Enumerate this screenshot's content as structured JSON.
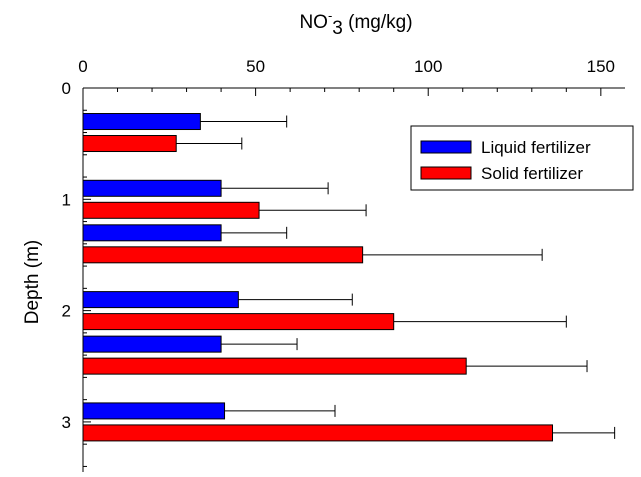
{
  "chart_data": {
    "type": "bar",
    "orientation": "horizontal",
    "title": "",
    "xlabel": {
      "prefix": "NO",
      "superscript": "-",
      "subscript": "3",
      "suffix": " (mg/kg)"
    },
    "ylabel": "Depth (m)",
    "xlim": [
      0,
      157
    ],
    "ylim": [
      0,
      3.45
    ],
    "x_axis_position": "top",
    "y_axis_inverted": true,
    "x_ticks": [
      "0",
      "50",
      "100",
      "150"
    ],
    "x_tick_values": [
      0,
      50,
      100,
      150
    ],
    "x_minor_step": 10,
    "y_ticks": [
      "0",
      "1",
      "2",
      "3"
    ],
    "y_tick_values": [
      0,
      1,
      2,
      3
    ],
    "y_minor_step": 0.2,
    "grid": false,
    "legend_position": "top-right",
    "categories": [
      0.4,
      1.0,
      1.4,
      2.0,
      2.4,
      3.0
    ],
    "series": [
      {
        "name": "Liquid fertilizer",
        "color": "#0000ff",
        "values": [
          34,
          40,
          40,
          45,
          40,
          41
        ],
        "errors": [
          25,
          31,
          19,
          33,
          22,
          32
        ]
      },
      {
        "name": "Solid fertilizer",
        "color": "#ff0000",
        "values": [
          27,
          51,
          81,
          90,
          111,
          136
        ],
        "errors": [
          19,
          31,
          52,
          50,
          35,
          18
        ]
      }
    ]
  }
}
